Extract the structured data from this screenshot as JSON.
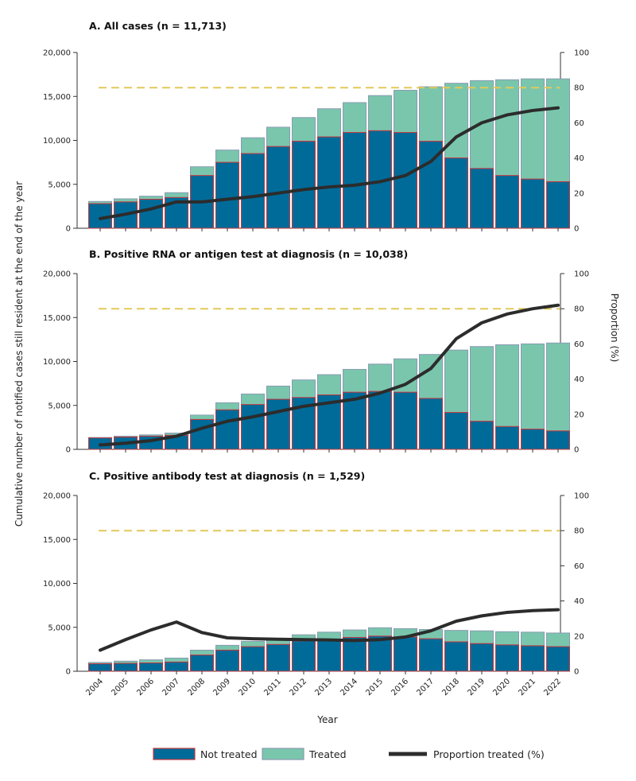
{
  "chart_data": [
    {
      "type": "bar",
      "title": "A. All cases (n = 11,713)",
      "categories": [
        "2004",
        "2005",
        "2006",
        "2007",
        "2008",
        "2009",
        "2010",
        "2011",
        "2012",
        "2013",
        "2014",
        "2015",
        "2016",
        "2017",
        "2018",
        "2019",
        "2020",
        "2021",
        "2022"
      ],
      "series": [
        {
          "name": "Not treated",
          "values": [
            2800,
            3000,
            3300,
            3500,
            6000,
            7500,
            8500,
            9300,
            9900,
            10400,
            10900,
            11100,
            10900,
            9900,
            8000,
            6800,
            6000,
            5600,
            5300
          ]
        },
        {
          "name": "Treated",
          "values": [
            250,
            350,
            350,
            550,
            1000,
            1400,
            1800,
            2200,
            2700,
            3200,
            3400,
            4000,
            4800,
            6200,
            8500,
            10000,
            10900,
            11400,
            11700
          ]
        },
        {
          "name": "Proportion treated (%)",
          "axis": "right",
          "values": [
            5.5,
            8,
            11,
            15,
            15,
            16.5,
            18,
            20,
            22,
            23.5,
            24.5,
            26.5,
            30,
            38,
            52,
            60,
            64.5,
            67,
            68.5
          ]
        }
      ],
      "reference_line": {
        "axis": "right",
        "value": 80
      },
      "ylim": [
        0,
        20000
      ],
      "y2lim": [
        0,
        100
      ],
      "yticks": [
        "0",
        "5,000",
        "10,000",
        "15,000",
        "20,000"
      ],
      "y2ticks": [
        "0",
        "20",
        "40",
        "60",
        "80",
        "100"
      ]
    },
    {
      "type": "bar",
      "title": "B. Positive RNA or antigen test at diagnosis (n = 10,038)",
      "categories": [
        "2004",
        "2005",
        "2006",
        "2007",
        "2008",
        "2009",
        "2010",
        "2011",
        "2012",
        "2013",
        "2014",
        "2015",
        "2016",
        "2017",
        "2018",
        "2019",
        "2020",
        "2021",
        "2022"
      ],
      "series": [
        {
          "name": "Not treated",
          "values": [
            1300,
            1400,
            1500,
            1600,
            3400,
            4500,
            5100,
            5700,
            5900,
            6200,
            6500,
            6600,
            6500,
            5800,
            4200,
            3200,
            2600,
            2300,
            2100
          ]
        },
        {
          "name": "Treated",
          "values": [
            50,
            100,
            150,
            250,
            500,
            800,
            1200,
            1500,
            2000,
            2300,
            2600,
            3100,
            3800,
            5000,
            7100,
            8500,
            9300,
            9700,
            10000
          ]
        },
        {
          "name": "Proportion treated (%)",
          "axis": "right",
          "values": [
            2.5,
            3.5,
            5,
            7.5,
            12,
            16,
            18.5,
            21.5,
            24.5,
            26.5,
            28.5,
            32,
            37,
            46,
            63,
            72,
            77,
            80,
            82
          ]
        }
      ],
      "reference_line": {
        "axis": "right",
        "value": 80
      },
      "ylim": [
        0,
        20000
      ],
      "y2lim": [
        0,
        100
      ],
      "yticks": [
        "0",
        "5,000",
        "10,000",
        "15,000",
        "20,000"
      ],
      "y2ticks": [
        "0",
        "20",
        "40",
        "60",
        "80",
        "100"
      ]
    },
    {
      "type": "bar",
      "title": "C. Positive antibody test at diagnosis (n = 1,529)",
      "categories": [
        "2004",
        "2005",
        "2006",
        "2007",
        "2008",
        "2009",
        "2010",
        "2011",
        "2012",
        "2013",
        "2014",
        "2015",
        "2016",
        "2017",
        "2018",
        "2019",
        "2020",
        "2021",
        "2022"
      ],
      "series": [
        {
          "name": "Not treated",
          "values": [
            850,
            900,
            950,
            1050,
            1850,
            2400,
            2800,
            3050,
            3450,
            3650,
            3850,
            4000,
            3900,
            3700,
            3350,
            3150,
            3000,
            2900,
            2800
          ]
        },
        {
          "name": "Treated",
          "values": [
            150,
            250,
            350,
            450,
            550,
            550,
            600,
            650,
            700,
            800,
            850,
            950,
            950,
            1050,
            1300,
            1450,
            1500,
            1550,
            1550
          ]
        },
        {
          "name": "Proportion treated (%)",
          "axis": "right",
          "values": [
            12,
            18,
            23.5,
            28,
            22,
            19,
            18.5,
            18.2,
            18,
            17.8,
            17.5,
            18,
            19.5,
            23,
            28.5,
            31.5,
            33.5,
            34.5,
            35
          ]
        }
      ],
      "reference_line": {
        "axis": "right",
        "value": 80
      },
      "ylim": [
        0,
        20000
      ],
      "y2lim": [
        0,
        100
      ],
      "yticks": [
        "0",
        "5,000",
        "10,000",
        "15,000",
        "20,000"
      ],
      "y2ticks": [
        "0",
        "20",
        "40",
        "60",
        "80",
        "100"
      ]
    }
  ],
  "axes": {
    "ylabel": "Cumulative number of notified cases still resident at the end of the year",
    "y2label": "Proportion (%)",
    "xlabel": "Year"
  },
  "legend": {
    "items": [
      {
        "label": "Not treated"
      },
      {
        "label": "Treated"
      },
      {
        "label": "Proportion treated (%)"
      }
    ]
  },
  "colors": {
    "not_treated": "#006b99",
    "treated": "#79c6ad",
    "bar_outline": "#c9383c",
    "treated_outline": "#8a9bb0",
    "line": "#2c2c2c",
    "reference": "#e2c95a",
    "axis": "#333333"
  }
}
